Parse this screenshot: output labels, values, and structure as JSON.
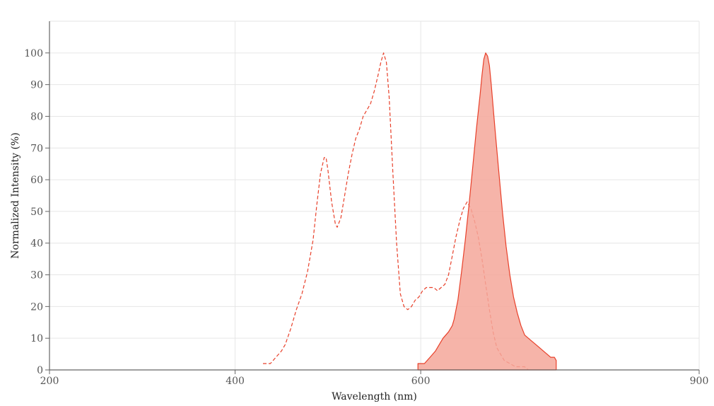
{
  "chart_data": {
    "type": "area",
    "title": "",
    "xlabel": "Wavelength (nm)",
    "ylabel": "Normalized Intensity (%)",
    "xlim": [
      200,
      900
    ],
    "ylim": [
      0,
      110
    ],
    "x_ticks": [
      200,
      400,
      600,
      900
    ],
    "y_ticks": [
      0,
      10,
      20,
      30,
      40,
      50,
      60,
      70,
      80,
      90,
      100
    ],
    "grid": true,
    "legend": "none",
    "series": [
      {
        "style": "dashed-line",
        "color": "#e8402a",
        "points": [
          [
            430,
            2
          ],
          [
            438,
            2
          ],
          [
            444,
            4
          ],
          [
            450,
            6
          ],
          [
            454,
            8
          ],
          [
            460,
            13
          ],
          [
            466,
            19
          ],
          [
            472,
            24
          ],
          [
            478,
            31
          ],
          [
            484,
            41
          ],
          [
            488,
            52
          ],
          [
            492,
            62
          ],
          [
            496,
            67
          ],
          [
            498,
            67
          ],
          [
            500,
            63
          ],
          [
            504,
            53
          ],
          [
            508,
            46
          ],
          [
            510,
            45
          ],
          [
            514,
            48
          ],
          [
            518,
            55
          ],
          [
            522,
            62
          ],
          [
            526,
            68
          ],
          [
            530,
            73
          ],
          [
            534,
            76
          ],
          [
            538,
            80
          ],
          [
            542,
            82
          ],
          [
            546,
            84
          ],
          [
            550,
            88
          ],
          [
            554,
            93
          ],
          [
            557,
            97
          ],
          [
            560,
            100
          ],
          [
            563,
            97
          ],
          [
            566,
            86
          ],
          [
            570,
            62
          ],
          [
            574,
            40
          ],
          [
            578,
            24
          ],
          [
            582,
            20
          ],
          [
            586,
            19
          ],
          [
            590,
            20
          ],
          [
            594,
            22
          ],
          [
            598,
            23
          ],
          [
            602,
            25
          ],
          [
            606,
            26
          ],
          [
            610,
            26
          ],
          [
            614,
            26
          ],
          [
            618,
            25
          ],
          [
            622,
            26
          ],
          [
            626,
            27
          ],
          [
            630,
            30
          ],
          [
            634,
            36
          ],
          [
            638,
            42
          ],
          [
            642,
            47
          ],
          [
            646,
            51
          ],
          [
            650,
            53
          ],
          [
            654,
            51
          ],
          [
            658,
            47
          ],
          [
            662,
            42
          ],
          [
            666,
            35
          ],
          [
            670,
            27
          ],
          [
            674,
            19
          ],
          [
            678,
            12
          ],
          [
            682,
            7
          ],
          [
            686,
            5
          ],
          [
            690,
            3
          ],
          [
            696,
            2
          ],
          [
            702,
            1
          ],
          [
            708,
            1
          ],
          [
            712,
            1
          ],
          [
            716,
            0
          ]
        ]
      },
      {
        "style": "filled-area",
        "color": "#e8402a",
        "fill": "#f4a79a",
        "points": [
          [
            597,
            2
          ],
          [
            604,
            2
          ],
          [
            610,
            4
          ],
          [
            616,
            6
          ],
          [
            620,
            8
          ],
          [
            624,
            10
          ],
          [
            630,
            12
          ],
          [
            634,
            14
          ],
          [
            636,
            16
          ],
          [
            640,
            22
          ],
          [
            644,
            31
          ],
          [
            648,
            41
          ],
          [
            652,
            52
          ],
          [
            656,
            64
          ],
          [
            660,
            76
          ],
          [
            664,
            87
          ],
          [
            666,
            93
          ],
          [
            668,
            98
          ],
          [
            670,
            100
          ],
          [
            672,
            99
          ],
          [
            674,
            96
          ],
          [
            676,
            90
          ],
          [
            680,
            76
          ],
          [
            684,
            63
          ],
          [
            688,
            50
          ],
          [
            692,
            39
          ],
          [
            696,
            30
          ],
          [
            700,
            23
          ],
          [
            704,
            18
          ],
          [
            708,
            14
          ],
          [
            712,
            11
          ],
          [
            716,
            10
          ],
          [
            720,
            9
          ],
          [
            724,
            8
          ],
          [
            728,
            7
          ],
          [
            732,
            6
          ],
          [
            736,
            5
          ],
          [
            740,
            4
          ],
          [
            744,
            4
          ],
          [
            746,
            3
          ],
          [
            746,
            0
          ],
          [
            597,
            0
          ]
        ]
      }
    ]
  }
}
